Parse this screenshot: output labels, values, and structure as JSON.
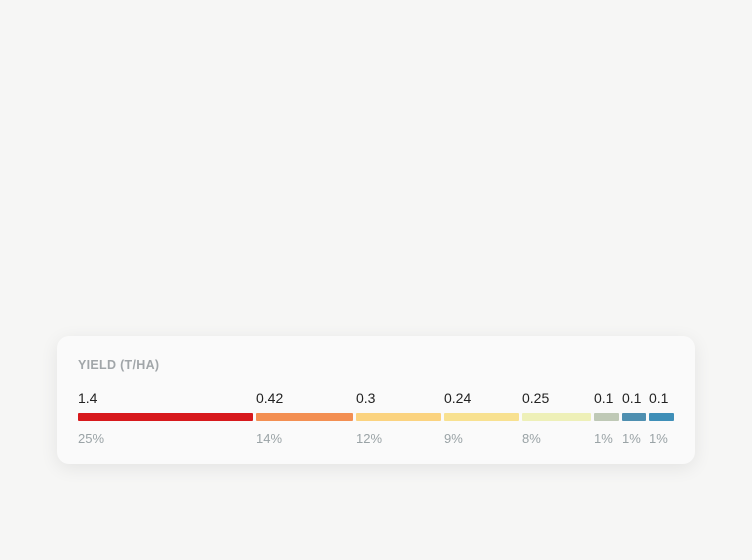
{
  "chart_data": {
    "type": "bar",
    "orientation": "stacked-horizontal",
    "title": "YIELD (T/HA)",
    "segments": [
      {
        "value": "1.4",
        "percent": "25%",
        "color": "#d7191c"
      },
      {
        "value": "0.42",
        "percent": "14%",
        "color": "#f38f52"
      },
      {
        "value": "0.3",
        "percent": "12%",
        "color": "#fbd37f"
      },
      {
        "value": "0.24",
        "percent": "9%",
        "color": "#f8e190"
      },
      {
        "value": "0.25",
        "percent": "8%",
        "color": "#eef0b8"
      },
      {
        "value": "0.1",
        "percent": "1%",
        "color": "#bfc9b6"
      },
      {
        "value": "0.1",
        "percent": "1%",
        "color": "#4e8fb0"
      },
      {
        "value": "0.1",
        "percent": "1%",
        "color": "#3f8fb8"
      }
    ]
  }
}
